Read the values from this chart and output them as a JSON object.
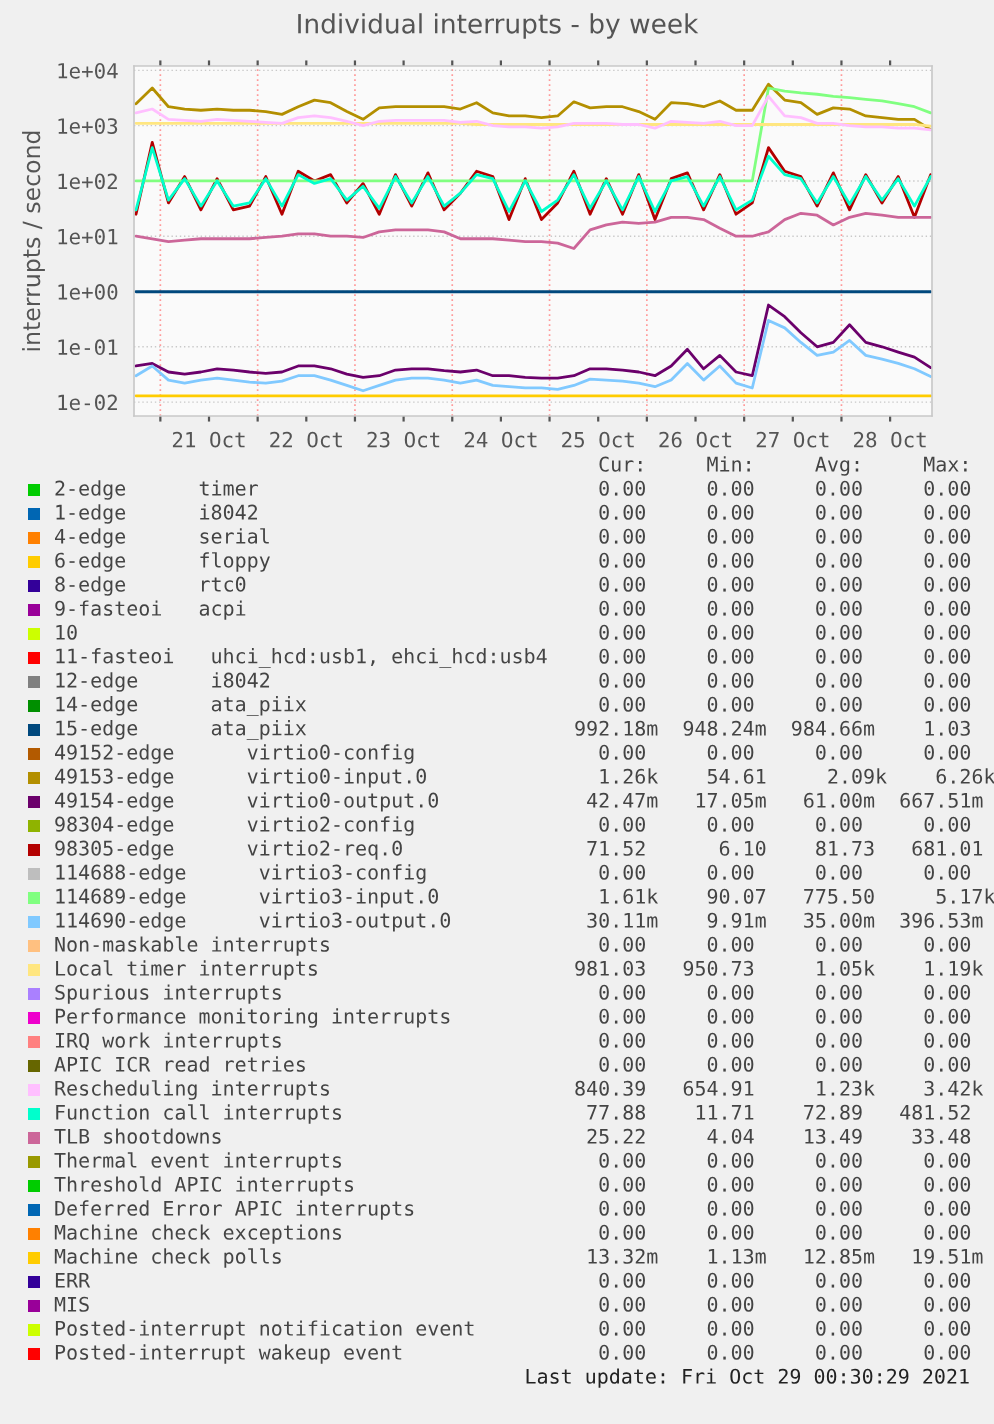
{
  "chart_data": {
    "type": "line",
    "title": "Individual interrupts - by week",
    "ylabel": "interrupts / second",
    "x": [
      "2021-10-20T18:00",
      "2021-10-20T22:00",
      "2021-10-21T02:00",
      "2021-10-21T06:00",
      "2021-10-21T10:00",
      "2021-10-21T14:00",
      "2021-10-21T18:00",
      "2021-10-21T22:00",
      "2021-10-22T02:00",
      "2021-10-22T06:00",
      "2021-10-22T10:00",
      "2021-10-22T14:00",
      "2021-10-22T18:00",
      "2021-10-22T22:00",
      "2021-10-23T02:00",
      "2021-10-23T06:00",
      "2021-10-23T10:00",
      "2021-10-23T14:00",
      "2021-10-23T18:00",
      "2021-10-23T22:00",
      "2021-10-24T02:00",
      "2021-10-24T06:00",
      "2021-10-24T10:00",
      "2021-10-24T14:00",
      "2021-10-24T18:00",
      "2021-10-24T22:00",
      "2021-10-25T02:00",
      "2021-10-25T06:00",
      "2021-10-25T10:00",
      "2021-10-25T14:00",
      "2021-10-25T18:00",
      "2021-10-25T22:00",
      "2021-10-26T02:00",
      "2021-10-26T06:00",
      "2021-10-26T10:00",
      "2021-10-26T14:00",
      "2021-10-26T18:00",
      "2021-10-26T22:00",
      "2021-10-27T02:00",
      "2021-10-27T06:00",
      "2021-10-27T10:00",
      "2021-10-27T14:00",
      "2021-10-27T18:00",
      "2021-10-27T22:00",
      "2021-10-28T02:00",
      "2021-10-28T06:00",
      "2021-10-28T10:00",
      "2021-10-28T14:00",
      "2021-10-28T18:00",
      "2021-10-28T22:00"
    ],
    "xlim": [
      "2021-10-20T17:30",
      "2021-10-28T22:20"
    ],
    "xticks": [
      {
        "value": "2021-10-21T00:00",
        "label": null
      },
      {
        "value": "2021-10-22T00:00",
        "label": null
      },
      {
        "value": "2021-10-23T00:00",
        "label": null
      },
      {
        "value": "2021-10-24T00:00",
        "label": null
      },
      {
        "value": "2021-10-25T00:00",
        "label": null
      },
      {
        "value": "2021-10-26T00:00",
        "label": null
      },
      {
        "value": "2021-10-27T00:00",
        "label": null
      },
      {
        "value": "2021-10-28T00:00",
        "label": null
      },
      {
        "value": "2021-10-21T12:00",
        "label": "21 Oct"
      },
      {
        "value": "2021-10-22T12:00",
        "label": "22 Oct"
      },
      {
        "value": "2021-10-23T12:00",
        "label": "23 Oct"
      },
      {
        "value": "2021-10-24T12:00",
        "label": "24 Oct"
      },
      {
        "value": "2021-10-25T12:00",
        "label": "25 Oct"
      },
      {
        "value": "2021-10-26T12:00",
        "label": "26 Oct"
      },
      {
        "value": "2021-10-27T12:00",
        "label": "27 Oct"
      },
      {
        "value": "2021-10-28T12:00",
        "label": "28 Oct"
      }
    ],
    "log": "y",
    "ylim": [
      0.0056,
      12000
    ],
    "yticks": [
      {
        "value": 10000,
        "label": "1e+04"
      },
      {
        "value": 1000,
        "label": "1e+03"
      },
      {
        "value": 100,
        "label": "1e+02"
      },
      {
        "value": 10,
        "label": "1e+01"
      },
      {
        "value": 1,
        "label": "1e+00"
      },
      {
        "value": 0.1,
        "label": "1e-01"
      },
      {
        "value": 0.01,
        "label": "1e-02"
      }
    ],
    "grid": true,
    "legend": "bottom",
    "line_style": "solid",
    "marker": "none",
    "series": [
      {
        "name": "2-edge      timer",
        "color": "#00cc00",
        "values": [
          null,
          null,
          null,
          null,
          null,
          null,
          null,
          null,
          null,
          null,
          null,
          null,
          null,
          null,
          null,
          null,
          null,
          null,
          null,
          null,
          null,
          null,
          null,
          null,
          null,
          null,
          null,
          null,
          null,
          null,
          null,
          null,
          null,
          null,
          null,
          null,
          null,
          null,
          null,
          null,
          null,
          null,
          null,
          null,
          null,
          null,
          null,
          null,
          null,
          null
        ]
      },
      {
        "name": "1-edge      i8042",
        "color": "#0066b3",
        "values": [
          null,
          null,
          null,
          null,
          null,
          null,
          null,
          null,
          null,
          null,
          null,
          null,
          null,
          null,
          null,
          null,
          null,
          null,
          null,
          null,
          null,
          null,
          null,
          null,
          null,
          null,
          null,
          null,
          null,
          null,
          null,
          null,
          null,
          null,
          null,
          null,
          null,
          null,
          null,
          null,
          null,
          null,
          null,
          null,
          null,
          null,
          null,
          null,
          null,
          null
        ]
      },
      {
        "name": "4-edge      serial",
        "color": "#ff8000",
        "values": [
          null,
          null,
          null,
          null,
          null,
          null,
          null,
          null,
          null,
          null,
          null,
          null,
          null,
          null,
          null,
          null,
          null,
          null,
          null,
          null,
          null,
          null,
          null,
          null,
          null,
          null,
          null,
          null,
          null,
          null,
          null,
          null,
          null,
          null,
          null,
          null,
          null,
          null,
          null,
          null,
          null,
          null,
          null,
          null,
          null,
          null,
          null,
          null,
          null,
          null
        ]
      },
      {
        "name": "6-edge      floppy",
        "color": "#ffcc00",
        "values": [
          null,
          null,
          null,
          null,
          null,
          null,
          null,
          null,
          null,
          null,
          null,
          null,
          null,
          null,
          null,
          null,
          null,
          null,
          null,
          null,
          null,
          null,
          null,
          null,
          null,
          null,
          null,
          null,
          null,
          null,
          null,
          null,
          null,
          null,
          null,
          null,
          null,
          null,
          null,
          null,
          null,
          null,
          null,
          null,
          null,
          null,
          null,
          null,
          null,
          null
        ]
      },
      {
        "name": "8-edge      rtc0",
        "color": "#330099",
        "values": [
          null,
          null,
          null,
          null,
          null,
          null,
          null,
          null,
          null,
          null,
          null,
          null,
          null,
          null,
          null,
          null,
          null,
          null,
          null,
          null,
          null,
          null,
          null,
          null,
          null,
          null,
          null,
          null,
          null,
          null,
          null,
          null,
          null,
          null,
          null,
          null,
          null,
          null,
          null,
          null,
          null,
          null,
          null,
          null,
          null,
          null,
          null,
          null,
          null,
          null
        ]
      },
      {
        "name": "9-fasteoi   acpi",
        "color": "#990099",
        "values": [
          null,
          null,
          null,
          null,
          null,
          null,
          null,
          null,
          null,
          null,
          null,
          null,
          null,
          null,
          null,
          null,
          null,
          null,
          null,
          null,
          null,
          null,
          null,
          null,
          null,
          null,
          null,
          null,
          null,
          null,
          null,
          null,
          null,
          null,
          null,
          null,
          null,
          null,
          null,
          null,
          null,
          null,
          null,
          null,
          null,
          null,
          null,
          null,
          null,
          null
        ]
      },
      {
        "name": "10",
        "color": "#ccff00",
        "values": [
          null,
          null,
          null,
          null,
          null,
          null,
          null,
          null,
          null,
          null,
          null,
          null,
          null,
          null,
          null,
          null,
          null,
          null,
          null,
          null,
          null,
          null,
          null,
          null,
          null,
          null,
          null,
          null,
          null,
          null,
          null,
          null,
          null,
          null,
          null,
          null,
          null,
          null,
          null,
          null,
          null,
          null,
          null,
          null,
          null,
          null,
          null,
          null,
          null,
          null
        ]
      },
      {
        "name": "11-fasteoi   uhci_hcd:usb1, ehci_hcd:usb4",
        "color": "#ff0000",
        "values": [
          null,
          null,
          null,
          null,
          null,
          null,
          null,
          null,
          null,
          null,
          null,
          null,
          null,
          null,
          null,
          null,
          null,
          null,
          null,
          null,
          null,
          null,
          null,
          null,
          null,
          null,
          null,
          null,
          null,
          null,
          null,
          null,
          null,
          null,
          null,
          null,
          null,
          null,
          null,
          null,
          null,
          null,
          null,
          null,
          null,
          null,
          null,
          null,
          null,
          null
        ]
      },
      {
        "name": "12-edge      i8042",
        "color": "#808080",
        "values": [
          null,
          null,
          null,
          null,
          null,
          null,
          null,
          null,
          null,
          null,
          null,
          null,
          null,
          null,
          null,
          null,
          null,
          null,
          null,
          null,
          null,
          null,
          null,
          null,
          null,
          null,
          null,
          null,
          null,
          null,
          null,
          null,
          null,
          null,
          null,
          null,
          null,
          null,
          null,
          null,
          null,
          null,
          null,
          null,
          null,
          null,
          null,
          null,
          null,
          null
        ]
      },
      {
        "name": "14-edge      ata_piix",
        "color": "#008f00",
        "values": [
          null,
          null,
          null,
          null,
          null,
          null,
          null,
          null,
          null,
          null,
          null,
          null,
          null,
          null,
          null,
          null,
          null,
          null,
          null,
          null,
          null,
          null,
          null,
          null,
          null,
          null,
          null,
          null,
          null,
          null,
          null,
          null,
          null,
          null,
          null,
          null,
          null,
          null,
          null,
          null,
          null,
          null,
          null,
          null,
          null,
          null,
          null,
          null,
          null,
          null
        ]
      },
      {
        "name": "15-edge      ata_piix",
        "color": "#00487d",
        "values": [
          0.99,
          0.99,
          0.99,
          0.99,
          0.99,
          0.99,
          0.99,
          0.99,
          0.99,
          0.99,
          0.99,
          0.99,
          0.99,
          0.99,
          0.99,
          0.99,
          0.99,
          0.99,
          0.99,
          0.99,
          0.99,
          0.99,
          0.99,
          0.99,
          0.99,
          0.99,
          0.99,
          0.99,
          0.99,
          0.99,
          0.99,
          0.99,
          0.99,
          0.99,
          0.99,
          0.99,
          0.99,
          0.99,
          0.99,
          0.99,
          0.99,
          0.99,
          0.99,
          0.99,
          0.99,
          0.99,
          0.99,
          0.99,
          0.99,
          0.99
        ]
      },
      {
        "name": "49152-edge      virtio0-config",
        "color": "#b35a00",
        "values": [
          null,
          null,
          null,
          null,
          null,
          null,
          null,
          null,
          null,
          null,
          null,
          null,
          null,
          null,
          null,
          null,
          null,
          null,
          null,
          null,
          null,
          null,
          null,
          null,
          null,
          null,
          null,
          null,
          null,
          null,
          null,
          null,
          null,
          null,
          null,
          null,
          null,
          null,
          null,
          null,
          null,
          null,
          null,
          null,
          null,
          null,
          null,
          null,
          null,
          null
        ]
      },
      {
        "name": "49153-edge      virtio0-input.0",
        "color": "#b38f00",
        "values": [
          2500,
          4800,
          2200,
          2000,
          1900,
          2000,
          1900,
          1900,
          1800,
          1600,
          2200,
          2900,
          2600,
          1800,
          1300,
          2100,
          2200,
          2200,
          2200,
          2200,
          2000,
          2600,
          1700,
          1500,
          1500,
          1400,
          1500,
          2700,
          2100,
          2200,
          2200,
          1800,
          1300,
          2600,
          2500,
          2200,
          2800,
          1900,
          1900,
          5600,
          2900,
          2600,
          1600,
          2100,
          2000,
          1500,
          1400,
          1300,
          1300,
          850
        ]
      },
      {
        "name": "49154-edge      virtio0-output.0",
        "color": "#6b006b",
        "values": [
          0.045,
          0.05,
          0.035,
          0.032,
          0.035,
          0.04,
          0.038,
          0.035,
          0.033,
          0.035,
          0.045,
          0.045,
          0.04,
          0.032,
          0.028,
          0.03,
          0.038,
          0.04,
          0.04,
          0.037,
          0.035,
          0.038,
          0.03,
          0.03,
          0.028,
          0.027,
          0.027,
          0.03,
          0.04,
          0.04,
          0.038,
          0.035,
          0.03,
          0.045,
          0.09,
          0.04,
          0.07,
          0.035,
          0.03,
          0.57,
          0.35,
          0.18,
          0.1,
          0.12,
          0.25,
          0.12,
          0.1,
          0.08,
          0.065,
          0.042
        ]
      },
      {
        "name": "98304-edge      virtio2-config",
        "color": "#8fb300",
        "values": [
          null,
          null,
          null,
          null,
          null,
          null,
          null,
          null,
          null,
          null,
          null,
          null,
          null,
          null,
          null,
          null,
          null,
          null,
          null,
          null,
          null,
          null,
          null,
          null,
          null,
          null,
          null,
          null,
          null,
          null,
          null,
          null,
          null,
          null,
          null,
          null,
          null,
          null,
          null,
          null,
          null,
          null,
          null,
          null,
          null,
          null,
          null,
          null,
          null,
          null
        ]
      },
      {
        "name": "98305-edge      virtio2-req.0",
        "color": "#b30000",
        "values": [
          25,
          500,
          40,
          120,
          30,
          110,
          30,
          35,
          120,
          25,
          150,
          100,
          130,
          40,
          90,
          25,
          130,
          35,
          140,
          30,
          60,
          150,
          120,
          20,
          110,
          20,
          40,
          150,
          25,
          110,
          25,
          130,
          20,
          110,
          140,
          30,
          130,
          25,
          40,
          400,
          150,
          120,
          35,
          140,
          30,
          130,
          40,
          120,
          22,
          130
        ]
      },
      {
        "name": "114688-edge      virtio3-config",
        "color": "#bebebe",
        "values": [
          null,
          null,
          null,
          null,
          null,
          null,
          null,
          null,
          null,
          null,
          null,
          null,
          null,
          null,
          null,
          null,
          null,
          null,
          null,
          null,
          null,
          null,
          null,
          null,
          null,
          null,
          null,
          null,
          null,
          null,
          null,
          null,
          null,
          null,
          null,
          null,
          null,
          null,
          null,
          null,
          null,
          null,
          null,
          null,
          null,
          null,
          null,
          null,
          null,
          null
        ]
      },
      {
        "name": "114689-edge      virtio3-input.0",
        "color": "#80ff80",
        "values": [
          100,
          100,
          100,
          100,
          100,
          100,
          100,
          100,
          100,
          100,
          100,
          100,
          100,
          100,
          100,
          100,
          100,
          100,
          100,
          100,
          100,
          100,
          100,
          100,
          100,
          100,
          100,
          100,
          100,
          100,
          100,
          100,
          100,
          100,
          100,
          100,
          100,
          100,
          100,
          4800,
          4200,
          3900,
          3700,
          3400,
          3200,
          3000,
          2800,
          2500,
          2200,
          1700
        ]
      },
      {
        "name": "114690-edge      virtio3-output.0",
        "color": "#80c9ff",
        "values": [
          0.03,
          0.045,
          0.025,
          0.022,
          0.025,
          0.027,
          0.025,
          0.023,
          0.022,
          0.024,
          0.03,
          0.03,
          0.025,
          0.02,
          0.016,
          0.02,
          0.025,
          0.027,
          0.027,
          0.025,
          0.022,
          0.025,
          0.02,
          0.019,
          0.018,
          0.018,
          0.017,
          0.02,
          0.026,
          0.025,
          0.024,
          0.022,
          0.019,
          0.025,
          0.05,
          0.025,
          0.045,
          0.022,
          0.018,
          0.3,
          0.22,
          0.12,
          0.07,
          0.08,
          0.13,
          0.07,
          0.06,
          0.05,
          0.04,
          0.029
        ]
      },
      {
        "name": "Non-maskable interrupts",
        "color": "#ffc080",
        "values": [
          null,
          null,
          null,
          null,
          null,
          null,
          null,
          null,
          null,
          null,
          null,
          null,
          null,
          null,
          null,
          null,
          null,
          null,
          null,
          null,
          null,
          null,
          null,
          null,
          null,
          null,
          null,
          null,
          null,
          null,
          null,
          null,
          null,
          null,
          null,
          null,
          null,
          null,
          null,
          null,
          null,
          null,
          null,
          null,
          null,
          null,
          null,
          null,
          null,
          null
        ]
      },
      {
        "name": "Local timer interrupts",
        "color": "#ffe680",
        "values": [
          1100,
          1100,
          1100,
          1100,
          1100,
          1100,
          1100,
          1100,
          1100,
          1100,
          1100,
          1100,
          1100,
          1100,
          1100,
          1100,
          1100,
          1100,
          1100,
          1100,
          1100,
          1050,
          1050,
          1050,
          1050,
          1050,
          1050,
          1050,
          1050,
          1050,
          1050,
          1050,
          1050,
          1050,
          1050,
          1050,
          1050,
          1050,
          1050,
          1050,
          1050,
          1050,
          1050,
          1050,
          1050,
          1050,
          1050,
          1050,
          1050,
          981
        ]
      },
      {
        "name": "Spurious interrupts",
        "color": "#aa80ff",
        "values": [
          null,
          null,
          null,
          null,
          null,
          null,
          null,
          null,
          null,
          null,
          null,
          null,
          null,
          null,
          null,
          null,
          null,
          null,
          null,
          null,
          null,
          null,
          null,
          null,
          null,
          null,
          null,
          null,
          null,
          null,
          null,
          null,
          null,
          null,
          null,
          null,
          null,
          null,
          null,
          null,
          null,
          null,
          null,
          null,
          null,
          null,
          null,
          null,
          null,
          null
        ]
      },
      {
        "name": "Performance monitoring interrupts",
        "color": "#ee00cc",
        "values": [
          null,
          null,
          null,
          null,
          null,
          null,
          null,
          null,
          null,
          null,
          null,
          null,
          null,
          null,
          null,
          null,
          null,
          null,
          null,
          null,
          null,
          null,
          null,
          null,
          null,
          null,
          null,
          null,
          null,
          null,
          null,
          null,
          null,
          null,
          null,
          null,
          null,
          null,
          null,
          null,
          null,
          null,
          null,
          null,
          null,
          null,
          null,
          null,
          null,
          null
        ]
      },
      {
        "name": "IRQ work interrupts",
        "color": "#ff8080",
        "values": [
          null,
          null,
          null,
          null,
          null,
          null,
          null,
          null,
          null,
          null,
          null,
          null,
          null,
          null,
          null,
          null,
          null,
          null,
          null,
          null,
          null,
          null,
          null,
          null,
          null,
          null,
          null,
          null,
          null,
          null,
          null,
          null,
          null,
          null,
          null,
          null,
          null,
          null,
          null,
          null,
          null,
          null,
          null,
          null,
          null,
          null,
          null,
          null,
          null,
          null
        ]
      },
      {
        "name": "APIC ICR read retries",
        "color": "#666600",
        "values": [
          null,
          null,
          null,
          null,
          null,
          null,
          null,
          null,
          null,
          null,
          null,
          null,
          null,
          null,
          null,
          null,
          null,
          null,
          null,
          null,
          null,
          null,
          null,
          null,
          null,
          null,
          null,
          null,
          null,
          null,
          null,
          null,
          null,
          null,
          null,
          null,
          null,
          null,
          null,
          null,
          null,
          null,
          null,
          null,
          null,
          null,
          null,
          null,
          null,
          null
        ]
      },
      {
        "name": "Rescheduling interrupts",
        "color": "#ffbfff",
        "values": [
          1700,
          2000,
          1300,
          1250,
          1200,
          1300,
          1250,
          1200,
          1150,
          1100,
          1400,
          1500,
          1400,
          1200,
          1000,
          1200,
          1250,
          1250,
          1250,
          1250,
          1150,
          1200,
          1000,
          950,
          950,
          900,
          950,
          1100,
          1100,
          1100,
          1050,
          1050,
          900,
          1200,
          1150,
          1100,
          1200,
          1000,
          1000,
          3400,
          1500,
          1400,
          1100,
          1100,
          1000,
          950,
          950,
          900,
          900,
          840
        ]
      },
      {
        "name": "Function call interrupts",
        "color": "#00ffcc",
        "values": [
          30,
          400,
          45,
          110,
          35,
          100,
          35,
          40,
          110,
          35,
          130,
          90,
          110,
          45,
          80,
          32,
          120,
          40,
          120,
          35,
          60,
          130,
          110,
          28,
          100,
          28,
          45,
          130,
          32,
          100,
          30,
          120,
          28,
          100,
          120,
          35,
          120,
          30,
          45,
          280,
          130,
          110,
          40,
          120,
          38,
          120,
          45,
          110,
          35,
          120
        ]
      },
      {
        "name": "TLB shootdowns",
        "color": "#cc6699",
        "values": [
          10,
          9,
          8,
          8.5,
          9,
          9,
          9,
          9,
          9.5,
          10,
          11,
          11,
          10,
          10,
          9.5,
          12,
          13,
          13,
          13,
          12,
          9,
          9,
          9,
          8.5,
          8,
          8,
          7.5,
          6,
          13,
          16,
          18,
          17,
          18,
          22,
          22,
          20,
          14,
          10,
          10,
          12,
          20,
          26,
          24,
          16,
          22,
          26,
          24,
          22,
          22,
          22
        ]
      },
      {
        "name": "Thermal event interrupts",
        "color": "#999900",
        "values": [
          null,
          null,
          null,
          null,
          null,
          null,
          null,
          null,
          null,
          null,
          null,
          null,
          null,
          null,
          null,
          null,
          null,
          null,
          null,
          null,
          null,
          null,
          null,
          null,
          null,
          null,
          null,
          null,
          null,
          null,
          null,
          null,
          null,
          null,
          null,
          null,
          null,
          null,
          null,
          null,
          null,
          null,
          null,
          null,
          null,
          null,
          null,
          null,
          null,
          null
        ]
      },
      {
        "name": "Threshold APIC interrupts",
        "color": "#00cc00",
        "values": [
          null,
          null,
          null,
          null,
          null,
          null,
          null,
          null,
          null,
          null,
          null,
          null,
          null,
          null,
          null,
          null,
          null,
          null,
          null,
          null,
          null,
          null,
          null,
          null,
          null,
          null,
          null,
          null,
          null,
          null,
          null,
          null,
          null,
          null,
          null,
          null,
          null,
          null,
          null,
          null,
          null,
          null,
          null,
          null,
          null,
          null,
          null,
          null,
          null,
          null
        ]
      },
      {
        "name": "Deferred Error APIC interrupts",
        "color": "#0066b3",
        "values": [
          null,
          null,
          null,
          null,
          null,
          null,
          null,
          null,
          null,
          null,
          null,
          null,
          null,
          null,
          null,
          null,
          null,
          null,
          null,
          null,
          null,
          null,
          null,
          null,
          null,
          null,
          null,
          null,
          null,
          null,
          null,
          null,
          null,
          null,
          null,
          null,
          null,
          null,
          null,
          null,
          null,
          null,
          null,
          null,
          null,
          null,
          null,
          null,
          null,
          null
        ]
      },
      {
        "name": "Machine check exceptions",
        "color": "#ff8000",
        "values": [
          null,
          null,
          null,
          null,
          null,
          null,
          null,
          null,
          null,
          null,
          null,
          null,
          null,
          null,
          null,
          null,
          null,
          null,
          null,
          null,
          null,
          null,
          null,
          null,
          null,
          null,
          null,
          null,
          null,
          null,
          null,
          null,
          null,
          null,
          null,
          null,
          null,
          null,
          null,
          null,
          null,
          null,
          null,
          null,
          null,
          null,
          null,
          null,
          null,
          null
        ]
      },
      {
        "name": "Machine check polls",
        "color": "#ffcc00",
        "values": [
          0.013,
          0.013,
          0.013,
          0.013,
          0.013,
          0.013,
          0.013,
          0.013,
          0.013,
          0.013,
          0.013,
          0.013,
          0.013,
          0.013,
          0.013,
          0.013,
          0.013,
          0.013,
          0.013,
          0.013,
          0.013,
          0.013,
          0.013,
          0.013,
          0.013,
          0.013,
          0.013,
          0.013,
          0.013,
          0.013,
          0.013,
          0.013,
          0.013,
          0.013,
          0.013,
          0.013,
          0.013,
          0.013,
          0.013,
          0.013,
          0.013,
          0.013,
          0.013,
          0.013,
          0.013,
          0.013,
          0.013,
          0.013,
          0.013,
          0.013
        ]
      },
      {
        "name": "ERR",
        "color": "#330099",
        "values": [
          null,
          null,
          null,
          null,
          null,
          null,
          null,
          null,
          null,
          null,
          null,
          null,
          null,
          null,
          null,
          null,
          null,
          null,
          null,
          null,
          null,
          null,
          null,
          null,
          null,
          null,
          null,
          null,
          null,
          null,
          null,
          null,
          null,
          null,
          null,
          null,
          null,
          null,
          null,
          null,
          null,
          null,
          null,
          null,
          null,
          null,
          null,
          null,
          null,
          null
        ]
      },
      {
        "name": "MIS",
        "color": "#990099",
        "values": [
          null,
          null,
          null,
          null,
          null,
          null,
          null,
          null,
          null,
          null,
          null,
          null,
          null,
          null,
          null,
          null,
          null,
          null,
          null,
          null,
          null,
          null,
          null,
          null,
          null,
          null,
          null,
          null,
          null,
          null,
          null,
          null,
          null,
          null,
          null,
          null,
          null,
          null,
          null,
          null,
          null,
          null,
          null,
          null,
          null,
          null,
          null,
          null,
          null,
          null
        ]
      },
      {
        "name": "Posted-interrupt notification event",
        "color": "#ccff00",
        "values": [
          null,
          null,
          null,
          null,
          null,
          null,
          null,
          null,
          null,
          null,
          null,
          null,
          null,
          null,
          null,
          null,
          null,
          null,
          null,
          null,
          null,
          null,
          null,
          null,
          null,
          null,
          null,
          null,
          null,
          null,
          null,
          null,
          null,
          null,
          null,
          null,
          null,
          null,
          null,
          null,
          null,
          null,
          null,
          null,
          null,
          null,
          null,
          null,
          null,
          null
        ]
      },
      {
        "name": "Posted-interrupt wakeup event",
        "color": "#ff0000",
        "values": [
          null,
          null,
          null,
          null,
          null,
          null,
          null,
          null,
          null,
          null,
          null,
          null,
          null,
          null,
          null,
          null,
          null,
          null,
          null,
          null,
          null,
          null,
          null,
          null,
          null,
          null,
          null,
          null,
          null,
          null,
          null,
          null,
          null,
          null,
          null,
          null,
          null,
          null,
          null,
          null,
          null,
          null,
          null,
          null,
          null,
          null,
          null,
          null,
          null,
          null
        ]
      }
    ],
    "annotations": [
      "   Cur:     Min:     Avg:     Max:",
      "   0.00     0.00     0.00     0.00",
      "   0.00     0.00     0.00     0.00",
      "   0.00     0.00     0.00     0.00",
      "   0.00     0.00     0.00     0.00",
      "   0.00     0.00     0.00     0.00",
      "   0.00     0.00     0.00     0.00",
      "   0.00     0.00     0.00     0.00",
      "   0.00     0.00     0.00     0.00",
      "   0.00     0.00     0.00     0.00",
      "   0.00     0.00     0.00     0.00",
      " 992.18m  948.24m  984.66m    1.03",
      "   0.00     0.00     0.00     0.00",
      "   1.26k    54.61     2.09k    6.26k",
      "  42.47m   17.05m   61.00m  667.51m",
      "   0.00     0.00     0.00     0.00",
      "  71.52      6.10    81.73   681.01",
      "   0.00     0.00     0.00     0.00",
      "   1.61k    90.07   775.50     5.17k",
      "  30.11m    9.91m   35.00m  396.53m",
      "   0.00     0.00     0.00     0.00",
      " 981.03   950.73     1.05k    1.19k",
      "   0.00     0.00     0.00     0.00",
      "   0.00     0.00     0.00     0.00",
      "   0.00     0.00     0.00     0.00",
      "   0.00     0.00     0.00     0.00",
      " 840.39   654.91     1.23k    3.42k",
      "  77.88    11.71    72.89   481.52",
      "  25.22     4.04    13.49    33.48",
      "   0.00     0.00     0.00     0.00",
      "   0.00     0.00     0.00     0.00",
      "   0.00     0.00     0.00     0.00",
      "   0.00     0.00     0.00     0.00",
      "  13.32m    1.13m   12.85m   19.51m",
      "   0.00     0.00     0.00     0.00",
      "   0.00     0.00     0.00     0.00",
      "   0.00     0.00     0.00     0.00",
      "   0.00     0.00     0.00     0.00",
      "Last update: Fri Oct 29 00:30:29 2021"
    ]
  }
}
